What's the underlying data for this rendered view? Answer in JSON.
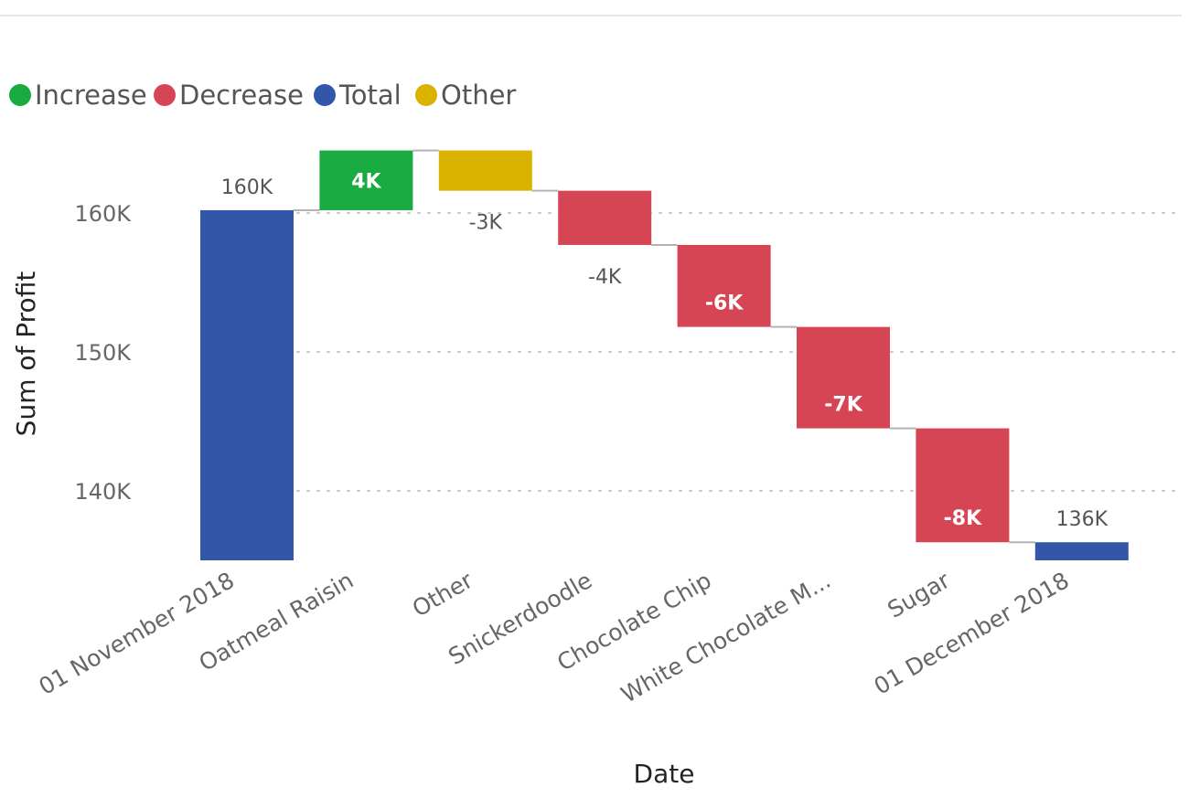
{
  "chart_data": {
    "type": "waterfall",
    "legend": [
      {
        "label": "Increase",
        "color": "#1aab40"
      },
      {
        "label": "Decrease",
        "color": "#d64554"
      },
      {
        "label": "Total",
        "color": "#3257a8"
      },
      {
        "label": "Other",
        "color": "#d9b300"
      }
    ],
    "xlabel": "Date",
    "ylabel": "Sum of Profit",
    "ylim": [
      135000,
      166000
    ],
    "yticks": [
      {
        "value": 140000,
        "label": "140K"
      },
      {
        "value": 150000,
        "label": "150K"
      },
      {
        "value": 160000,
        "label": "160K"
      }
    ],
    "bars": [
      {
        "category": "01 November 2018",
        "kind": "total",
        "start": 135000,
        "end": 160200,
        "label": "160K"
      },
      {
        "category": "Oatmeal Raisin",
        "kind": "increase",
        "start": 160200,
        "end": 164500,
        "label": "4K"
      },
      {
        "category": "Other",
        "kind": "other",
        "start": 164500,
        "end": 161600,
        "label": "-3K"
      },
      {
        "category": "Snickerdoodle",
        "kind": "decrease",
        "start": 161600,
        "end": 157700,
        "label": "-4K"
      },
      {
        "category": "Chocolate Chip",
        "kind": "decrease",
        "start": 157700,
        "end": 151800,
        "label": "-6K"
      },
      {
        "category": "White Chocolate M...",
        "kind": "decrease",
        "start": 151800,
        "end": 144500,
        "label": "-7K"
      },
      {
        "category": "Sugar",
        "kind": "decrease",
        "start": 144500,
        "end": 136300,
        "label": "-8K"
      },
      {
        "category": "01 December 2018",
        "kind": "total",
        "start": 135000,
        "end": 136300,
        "label": "136K"
      }
    ],
    "gridlines": "dotted"
  }
}
